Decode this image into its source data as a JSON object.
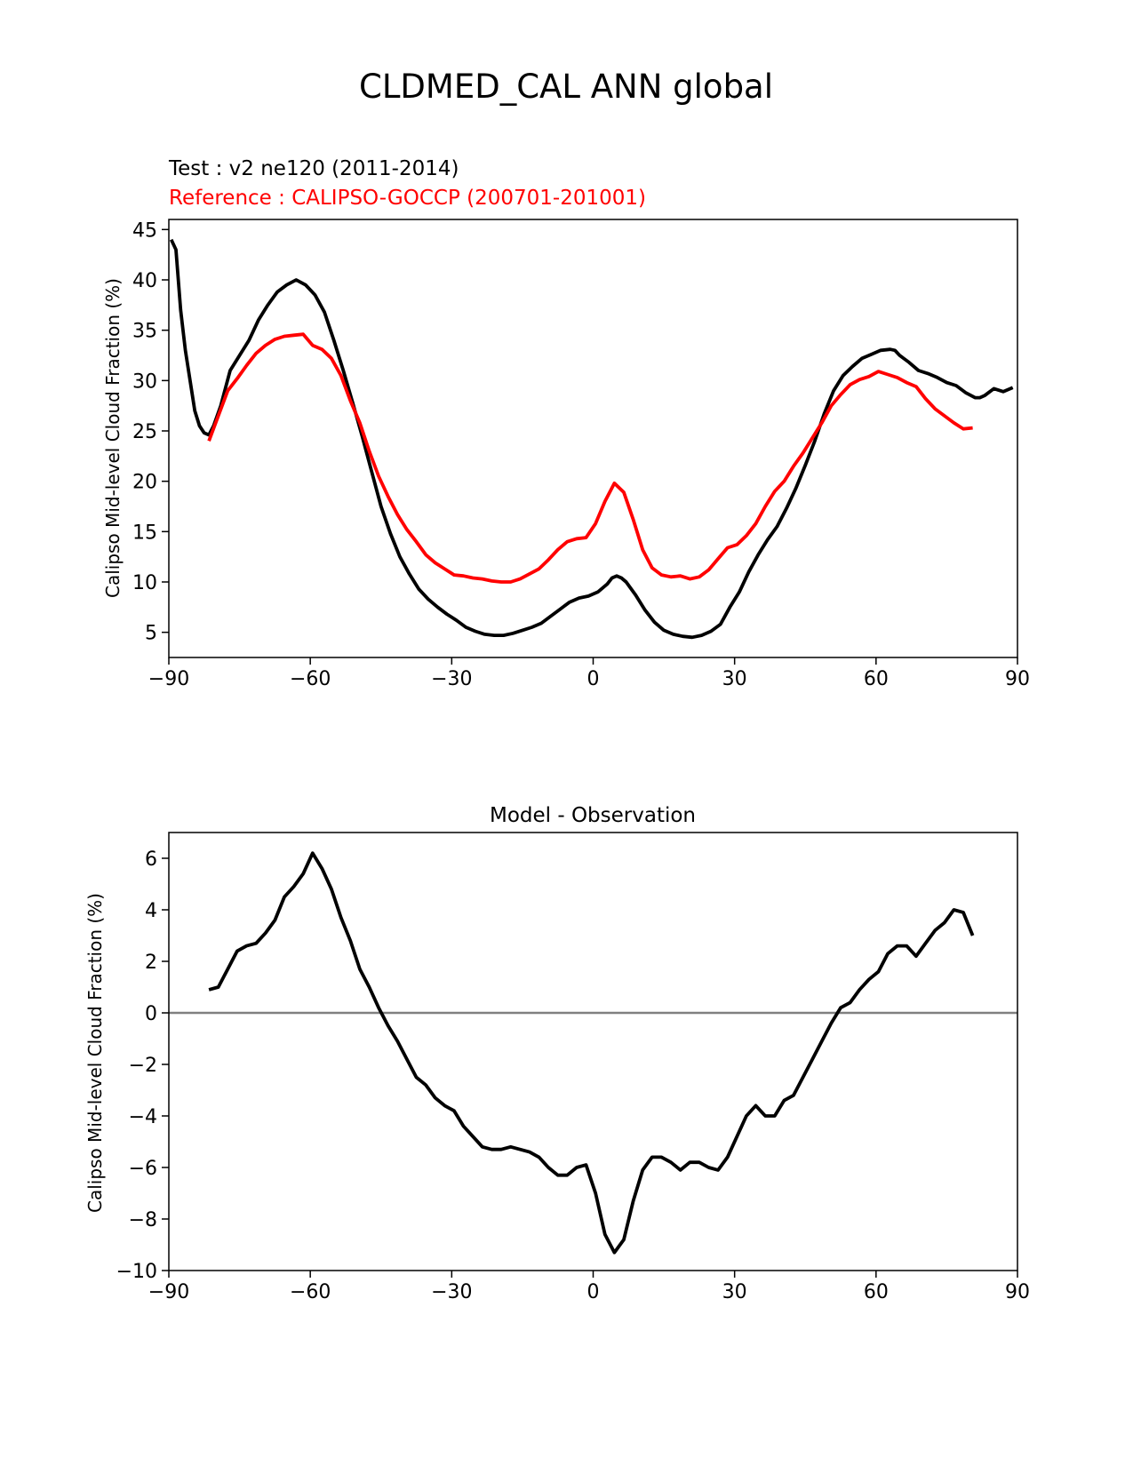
{
  "figure": {
    "title": "CLDMED_CAL ANN global"
  },
  "chart_data": [
    {
      "type": "line",
      "test_label": "Test : v2 ne120 (2011-2014)",
      "reference_label": "Reference : CALIPSO-GOCCP (200701-201001)",
      "xlabel": "",
      "ylabel": "Calipso Mid-level Cloud Fraction (%)",
      "xlim": [
        -90,
        90
      ],
      "ylim": [
        2.5,
        46
      ],
      "xticks": [
        -90,
        -60,
        -30,
        0,
        30,
        60,
        90
      ],
      "xtick_labels": [
        "−90",
        "−60",
        "−30",
        "0",
        "30",
        "60",
        "90"
      ],
      "yticks": [
        5,
        10,
        15,
        20,
        25,
        30,
        35,
        40,
        45
      ],
      "ytick_labels": [
        "5",
        "10",
        "15",
        "20",
        "25",
        "30",
        "35",
        "40",
        "45"
      ],
      "grid": false,
      "series": [
        {
          "color": "#000000",
          "x": [
            -89.5,
            -88.5,
            -87.5,
            -86.5,
            -85.5,
            -84.5,
            -83.5,
            -82.5,
            -81.5,
            -80.5,
            -79,
            -77,
            -75,
            -73,
            -71,
            -69,
            -67,
            -65,
            -63,
            -61,
            -60,
            -59,
            -57,
            -55,
            -53,
            -51,
            -49,
            -47,
            -45,
            -43,
            -41,
            -39,
            -37,
            -35,
            -33,
            -31,
            -29,
            -27,
            -25,
            -23,
            -21,
            -19,
            -17,
            -15,
            -13,
            -11,
            -9,
            -7,
            -5,
            -3,
            -1,
            1,
            3,
            4,
            5,
            6,
            7,
            9,
            11,
            13,
            15,
            17,
            19,
            21,
            23,
            25,
            27,
            29,
            31,
            33,
            35,
            37,
            39,
            41,
            43,
            45,
            47,
            49,
            51,
            53,
            55,
            57,
            59,
            61,
            63,
            64,
            65,
            67,
            69,
            71,
            73,
            75,
            77,
            79,
            81,
            82,
            83,
            85,
            87,
            89
          ],
          "y": [
            44,
            43,
            37,
            33,
            30,
            27,
            25.5,
            24.8,
            24.6,
            25.5,
            27.5,
            31,
            32.5,
            34,
            36,
            37.5,
            38.8,
            39.5,
            40,
            39.5,
            39,
            38.5,
            36.8,
            34,
            31,
            27.8,
            24.5,
            21,
            17.5,
            14.8,
            12.5,
            10.8,
            9.3,
            8.3,
            7.5,
            6.8,
            6.2,
            5.5,
            5.1,
            4.8,
            4.7,
            4.7,
            4.9,
            5.2,
            5.5,
            5.9,
            6.6,
            7.3,
            8,
            8.4,
            8.6,
            9,
            9.8,
            10.4,
            10.6,
            10.4,
            10,
            8.7,
            7.2,
            6,
            5.2,
            4.8,
            4.6,
            4.5,
            4.7,
            5.1,
            5.8,
            7.5,
            9,
            11,
            12.7,
            14.2,
            15.5,
            17.3,
            19.3,
            21.6,
            24,
            26.7,
            29,
            30.5,
            31.4,
            32.2,
            32.6,
            33,
            33.1,
            33,
            32.5,
            31.8,
            31,
            30.7,
            30.3,
            29.8,
            29.5,
            28.8,
            28.3,
            28.3,
            28.5,
            29.2,
            28.9,
            29.3
          ]
        },
        {
          "color": "#ff0000",
          "x": [
            -81.5,
            -79.5,
            -77.5,
            -75.5,
            -73.5,
            -71.5,
            -69.5,
            -67.5,
            -65.5,
            -63.5,
            -61.5,
            -59.5,
            -57.5,
            -55.5,
            -53.5,
            -51.5,
            -49.5,
            -47.5,
            -45.5,
            -43.5,
            -41.5,
            -39.5,
            -37.5,
            -35.5,
            -33.5,
            -31.5,
            -29.5,
            -27.5,
            -25.5,
            -23.5,
            -21.5,
            -19.5,
            -17.5,
            -15.5,
            -13.5,
            -11.5,
            -9.5,
            -7.5,
            -5.5,
            -3.5,
            -1.5,
            0.5,
            2.5,
            4.5,
            6.5,
            8.5,
            10.5,
            12.5,
            14.5,
            16.5,
            18.5,
            20.5,
            22.5,
            24.5,
            26.5,
            28.5,
            30.5,
            32.5,
            34.5,
            36.5,
            38.5,
            40.5,
            42.5,
            44.5,
            46.5,
            48.5,
            50.5,
            52.5,
            54.5,
            56.5,
            58.5,
            60.5,
            62.5,
            64.5,
            66.5,
            68.5,
            70.5,
            72.5,
            74.5,
            76.5,
            78.5,
            80.5
          ],
          "y": [
            24,
            26.5,
            29,
            30.2,
            31.5,
            32.7,
            33.5,
            34.1,
            34.4,
            34.5,
            34.6,
            33.5,
            33.1,
            32.2,
            30.5,
            28,
            25.8,
            23,
            20.5,
            18.5,
            16.7,
            15.2,
            14,
            12.7,
            11.9,
            11.3,
            10.7,
            10.6,
            10.4,
            10.3,
            10.1,
            10,
            10,
            10.3,
            10.8,
            11.3,
            12.2,
            13.2,
            14,
            14.3,
            14.4,
            15.8,
            18,
            19.8,
            18.9,
            16.2,
            13.2,
            11.4,
            10.7,
            10.5,
            10.6,
            10.3,
            10.5,
            11.2,
            12.3,
            13.4,
            13.7,
            14.6,
            15.8,
            17.5,
            19,
            20,
            21.5,
            22.8,
            24.3,
            25.8,
            27.5,
            28.6,
            29.6,
            30.1,
            30.4,
            30.9,
            30.6,
            30.3,
            29.8,
            29.4,
            28.2,
            27.2,
            26.5,
            25.8,
            25.2,
            25.3
          ]
        }
      ]
    },
    {
      "type": "line",
      "title": "Model - Observation",
      "xlabel": "",
      "ylabel": "Calipso Mid-level Cloud Fraction (%)",
      "xlim": [
        -90,
        90
      ],
      "ylim": [
        -10,
        7
      ],
      "xticks": [
        -90,
        -60,
        -30,
        0,
        30,
        60,
        90
      ],
      "xtick_labels": [
        "−90",
        "−60",
        "−30",
        "0",
        "30",
        "60",
        "90"
      ],
      "yticks": [
        -10,
        -8,
        -6,
        -4,
        -2,
        0,
        2,
        4,
        6
      ],
      "ytick_labels": [
        "−10",
        "−8",
        "−6",
        "−4",
        "−2",
        "0",
        "2",
        "4",
        "6"
      ],
      "zero_line_color": "#808080",
      "grid": false,
      "series": [
        {
          "color": "#000000",
          "x": [
            -81.5,
            -79.5,
            -77.5,
            -75.5,
            -73.5,
            -71.5,
            -69.5,
            -67.5,
            -65.5,
            -63.5,
            -61.5,
            -59.5,
            -57.5,
            -55.5,
            -53.5,
            -51.5,
            -49.5,
            -47.5,
            -45.5,
            -43.5,
            -41.5,
            -39.5,
            -37.5,
            -35.5,
            -33.5,
            -31.5,
            -29.5,
            -27.5,
            -25.5,
            -23.5,
            -21.5,
            -19.5,
            -17.5,
            -15.5,
            -13.5,
            -11.5,
            -9.5,
            -7.5,
            -5.5,
            -3.5,
            -1.5,
            0.5,
            2.5,
            4.5,
            6.5,
            8.5,
            10.5,
            12.5,
            14.5,
            16.5,
            18.5,
            20.5,
            22.5,
            24.5,
            26.5,
            28.5,
            30.5,
            32.5,
            34.5,
            36.5,
            38.5,
            40.5,
            42.5,
            44.5,
            46.5,
            48.5,
            50.5,
            52.5,
            54.5,
            56.5,
            58.5,
            60.5,
            62.5,
            64.5,
            66.5,
            68.5,
            70.5,
            72.5,
            74.5,
            76.5,
            78.5,
            80.5
          ],
          "y": [
            0.9,
            1.0,
            1.7,
            2.4,
            2.6,
            2.7,
            3.1,
            3.6,
            4.5,
            4.9,
            5.4,
            6.2,
            5.6,
            4.8,
            3.7,
            2.8,
            1.7,
            1.0,
            0.2,
            -0.5,
            -1.1,
            -1.8,
            -2.5,
            -2.8,
            -3.3,
            -3.6,
            -3.8,
            -4.4,
            -4.8,
            -5.2,
            -5.3,
            -5.3,
            -5.2,
            -5.3,
            -5.4,
            -5.6,
            -6.0,
            -6.3,
            -6.3,
            -6.0,
            -5.9,
            -7.0,
            -8.6,
            -9.3,
            -8.8,
            -7.3,
            -6.1,
            -5.6,
            -5.6,
            -5.8,
            -6.1,
            -5.8,
            -5.8,
            -6.0,
            -6.1,
            -5.6,
            -4.8,
            -4.0,
            -3.6,
            -4.0,
            -4.0,
            -3.4,
            -3.2,
            -2.5,
            -1.8,
            -1.1,
            -0.4,
            0.2,
            0.4,
            0.9,
            1.3,
            1.6,
            2.3,
            2.6,
            2.6,
            2.2,
            2.7,
            3.2,
            3.5,
            4.0,
            3.9,
            3.0
          ]
        }
      ]
    }
  ]
}
